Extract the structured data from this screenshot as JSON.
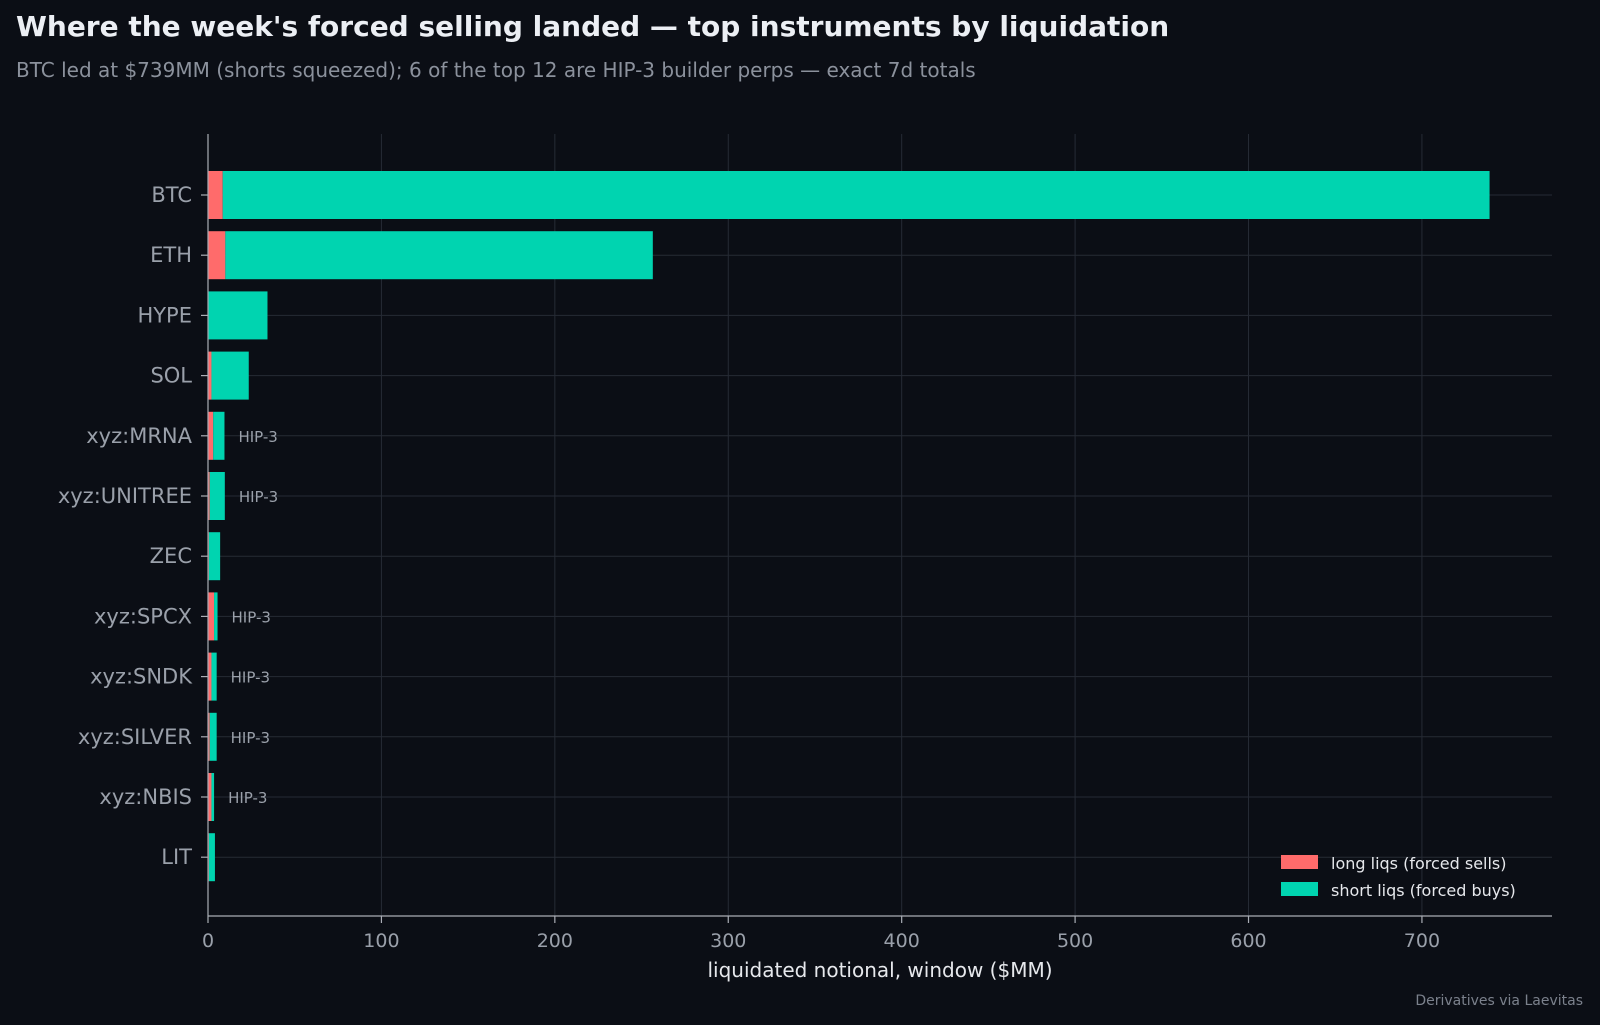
{
  "title": "Where the week's forced selling landed — top instruments by liquidation",
  "subtitle": "BTC led at $739MM (shorts squeezed); 6 of the top 12 are HIP-3 builder perps — exact 7d totals",
  "source": "Derivatives via Laevitas",
  "chart_data": {
    "type": "bar",
    "orientation": "horizontal",
    "stacked": true,
    "categories": [
      "BTC",
      "ETH",
      "HYPE",
      "SOL",
      "xyz:MRNA",
      "xyz:UNITREE",
      "ZEC",
      "xyz:SPCX",
      "xyz:SNDK",
      "xyz:SILVER",
      "xyz:NBIS",
      "LIT"
    ],
    "series": [
      {
        "name": "long liqs (forced sells)",
        "color": "#ff6b6b",
        "values": [
          8.5,
          10,
          0.3,
          2,
          3,
          1,
          0.5,
          3.5,
          2,
          1,
          2,
          0.5
        ]
      },
      {
        "name": "short liqs (forced buys)",
        "color": "#00d4b0",
        "values": [
          730.5,
          246.5,
          34,
          21.5,
          6.5,
          8.7,
          6.5,
          2,
          3,
          4,
          1.5,
          3.5
        ]
      }
    ],
    "annotations": [
      {
        "category": "xyz:MRNA",
        "text": "HIP-3"
      },
      {
        "category": "xyz:UNITREE",
        "text": "HIP-3"
      },
      {
        "category": "xyz:SPCX",
        "text": "HIP-3"
      },
      {
        "category": "xyz:SNDK",
        "text": "HIP-3"
      },
      {
        "category": "xyz:SILVER",
        "text": "HIP-3"
      },
      {
        "category": "xyz:NBIS",
        "text": "HIP-3"
      }
    ],
    "xlabel": "liquidated notional, window ($MM)",
    "xlim": [
      0,
      775
    ],
    "xticks": [
      0,
      100,
      200,
      300,
      400,
      500,
      600,
      700
    ],
    "grid": true,
    "legend_position": "bottom-right"
  }
}
